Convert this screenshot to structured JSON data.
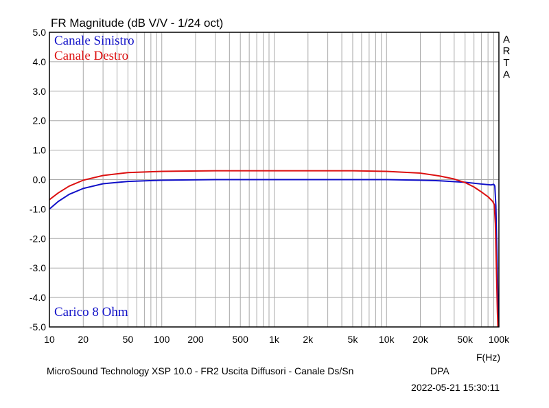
{
  "chart_data": {
    "type": "line",
    "title": "FR Magnitude (dB V/V - 1/24 oct)",
    "xlabel": "F(Hz)",
    "xscale": "log",
    "xlim": [
      10,
      100000
    ],
    "ylim": [
      -5,
      5
    ],
    "grid": true,
    "x_ticks": [
      {
        "value": 10,
        "label": "10"
      },
      {
        "value": 20,
        "label": "20"
      },
      {
        "value": 50,
        "label": "50"
      },
      {
        "value": 100,
        "label": "100"
      },
      {
        "value": 200,
        "label": "200"
      },
      {
        "value": 500,
        "label": "500"
      },
      {
        "value": 1000,
        "label": "1k"
      },
      {
        "value": 2000,
        "label": "2k"
      },
      {
        "value": 5000,
        "label": "5k"
      },
      {
        "value": 10000,
        "label": "10k"
      },
      {
        "value": 20000,
        "label": "20k"
      },
      {
        "value": 50000,
        "label": "50k"
      },
      {
        "value": 100000,
        "label": "100k"
      }
    ],
    "y_ticks": [
      {
        "value": 5,
        "label": "5.0"
      },
      {
        "value": 4,
        "label": "4.0"
      },
      {
        "value": 3,
        "label": "3.0"
      },
      {
        "value": 2,
        "label": "2.0"
      },
      {
        "value": 1,
        "label": "1.0"
      },
      {
        "value": 0,
        "label": "0.0"
      },
      {
        "value": -1,
        "label": "-1.0"
      },
      {
        "value": -2,
        "label": "-2.0"
      },
      {
        "value": -3,
        "label": "-3.0"
      },
      {
        "value": -4,
        "label": "-4.0"
      },
      {
        "value": -5,
        "label": "-5.0"
      }
    ],
    "series": [
      {
        "name": "Canale Sinistro",
        "color": "#1010c8",
        "points": [
          [
            10,
            -1.0
          ],
          [
            12,
            -0.74
          ],
          [
            15,
            -0.5
          ],
          [
            20,
            -0.3
          ],
          [
            30,
            -0.14
          ],
          [
            50,
            -0.06
          ],
          [
            100,
            -0.02
          ],
          [
            300,
            0.0
          ],
          [
            1000,
            0.0
          ],
          [
            5000,
            0.0
          ],
          [
            10000,
            0.0
          ],
          [
            20000,
            -0.02
          ],
          [
            30000,
            -0.04
          ],
          [
            50000,
            -0.09
          ],
          [
            70000,
            -0.15
          ],
          [
            85000,
            -0.18
          ],
          [
            90000,
            -0.16
          ],
          [
            92000,
            -0.22
          ],
          [
            94000,
            -0.9
          ],
          [
            96000,
            -2.5
          ],
          [
            98000,
            -4.0
          ],
          [
            99500,
            -5.0
          ]
        ]
      },
      {
        "name": "Canale Destro",
        "color": "#dc1010",
        "points": [
          [
            10,
            -0.68
          ],
          [
            12,
            -0.45
          ],
          [
            15,
            -0.22
          ],
          [
            20,
            -0.02
          ],
          [
            30,
            0.14
          ],
          [
            50,
            0.24
          ],
          [
            100,
            0.28
          ],
          [
            300,
            0.3
          ],
          [
            1000,
            0.3
          ],
          [
            5000,
            0.3
          ],
          [
            10000,
            0.28
          ],
          [
            20000,
            0.22
          ],
          [
            30000,
            0.12
          ],
          [
            40000,
            0.02
          ],
          [
            50000,
            -0.1
          ],
          [
            60000,
            -0.25
          ],
          [
            70000,
            -0.42
          ],
          [
            80000,
            -0.58
          ],
          [
            88000,
            -0.74
          ],
          [
            91000,
            -0.85
          ],
          [
            93000,
            -1.5
          ],
          [
            95000,
            -3.0
          ],
          [
            97000,
            -4.5
          ],
          [
            98000,
            -5.0
          ]
        ]
      }
    ],
    "annotations": [
      {
        "text": "Carico 8 Ohm",
        "color": "#1010c8",
        "position": "bottom-left"
      }
    ],
    "side_label": "ARTA",
    "legend_position": "top-left"
  },
  "footer": {
    "description": "MicroSound Technology XSP 10.0 - FR2 Uscita Diffusori - Canale Ds/Sn",
    "tag": "DPA",
    "timestamp": "2022-05-21  15:30:11"
  }
}
